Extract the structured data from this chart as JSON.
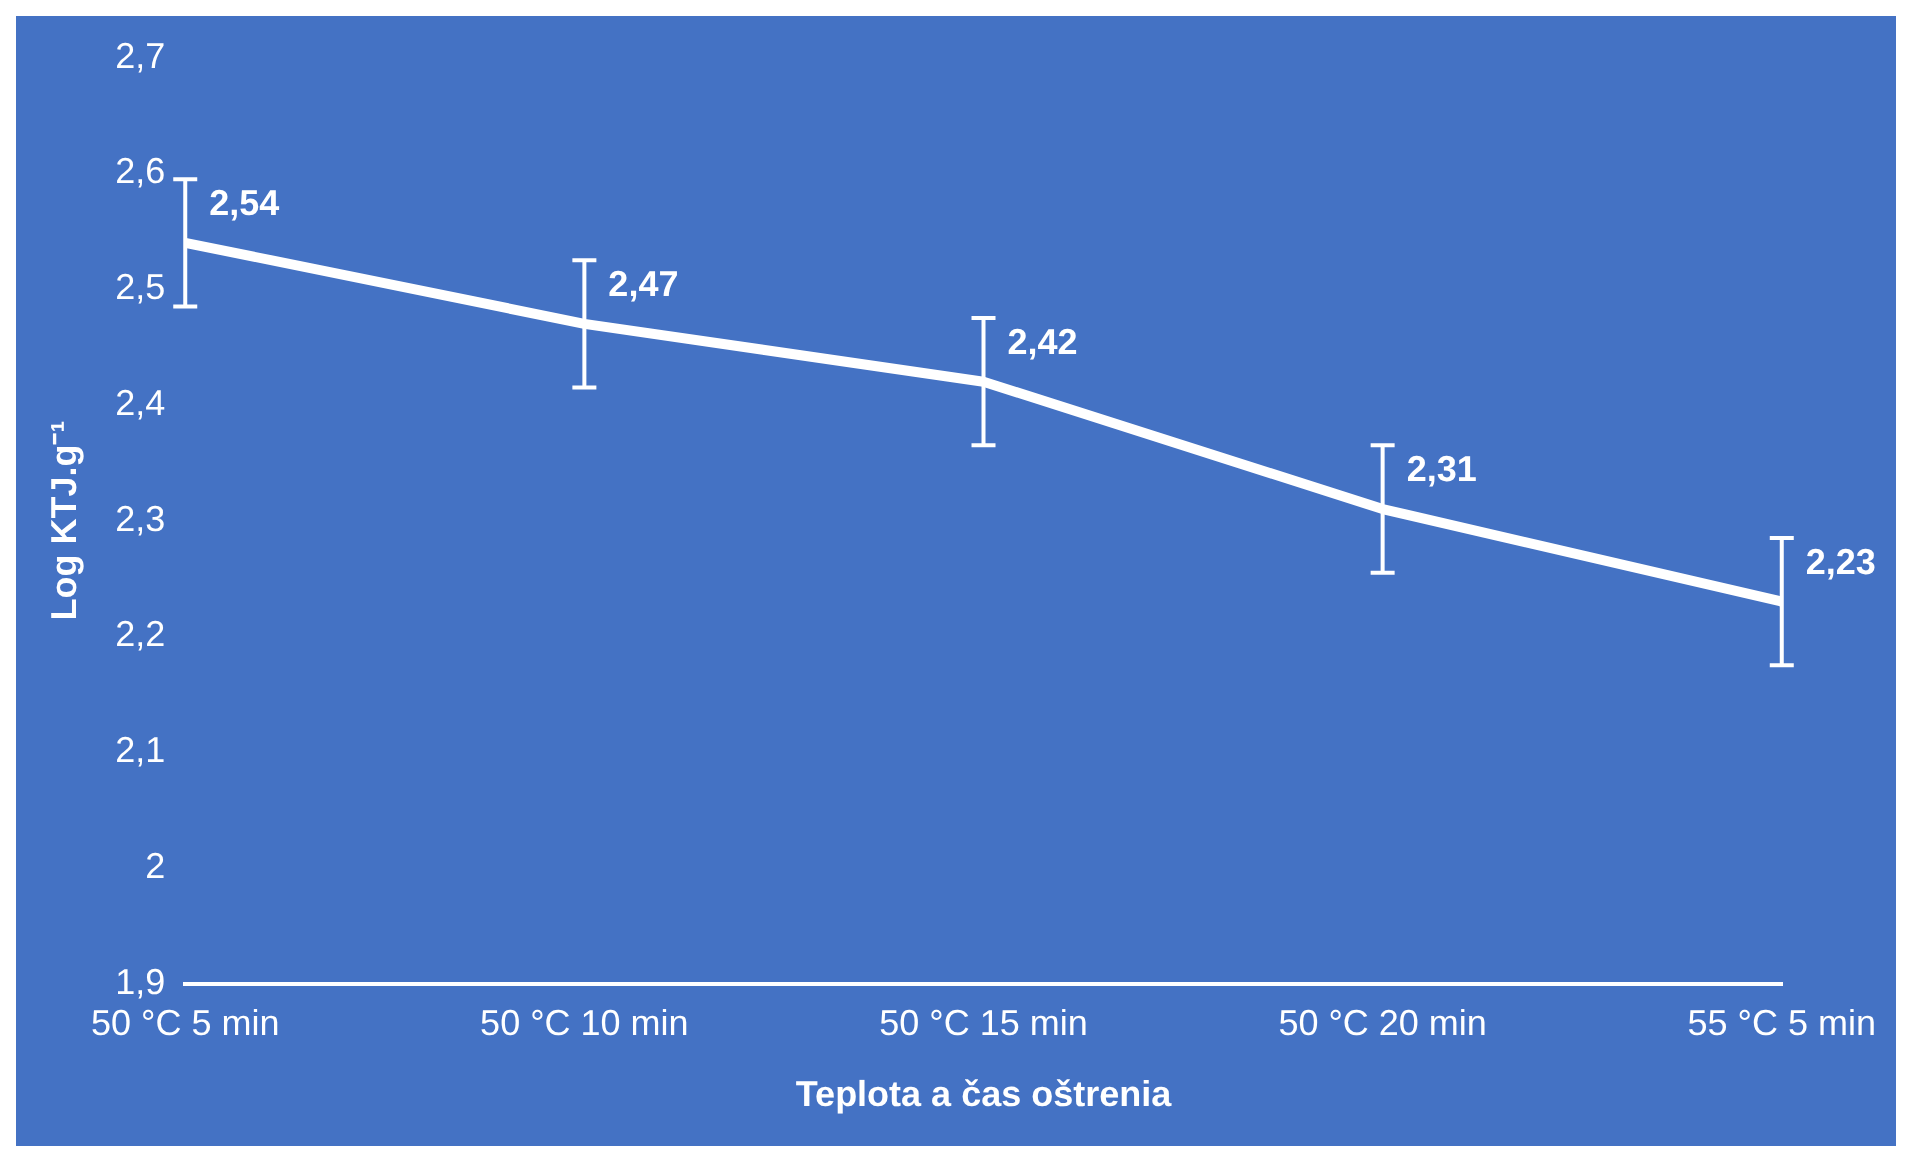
{
  "chart_data": {
    "type": "line",
    "xlabel": "Teplota a čas oštrenia",
    "ylabel": "Log KTJ.g⁻¹",
    "categories": [
      "50 °C 5 min",
      "50 °C 10 min",
      "50 °C 15 min",
      "50 °C 20 min",
      "55 °C 5 min"
    ],
    "series": [
      {
        "color": "#ffffff",
        "values": [
          2.54,
          2.47,
          2.42,
          2.31,
          2.23
        ],
        "errors": [
          0.055,
          0.055,
          0.055,
          0.055,
          0.055
        ],
        "value_labels": [
          "2,54",
          "2,47",
          "2,42",
          "2,31",
          "2,23"
        ]
      }
    ],
    "ylim": [
      1.9,
      2.7
    ],
    "yticks": [
      {
        "value": 1.9,
        "label": "1,9"
      },
      2,
      {
        "value": 2.1,
        "label": "2,1"
      },
      {
        "value": 2.2,
        "label": "2,2"
      },
      {
        "value": 2.3,
        "label": "2,3"
      },
      {
        "value": 2.4,
        "label": "2,4"
      },
      {
        "value": 2.5,
        "label": "2,5"
      },
      {
        "value": 2.6,
        "label": "2,6"
      },
      {
        "value": 2.7,
        "label": "2,7"
      }
    ],
    "grid": false,
    "legend": false,
    "marker": "none",
    "line_style": "solid"
  }
}
